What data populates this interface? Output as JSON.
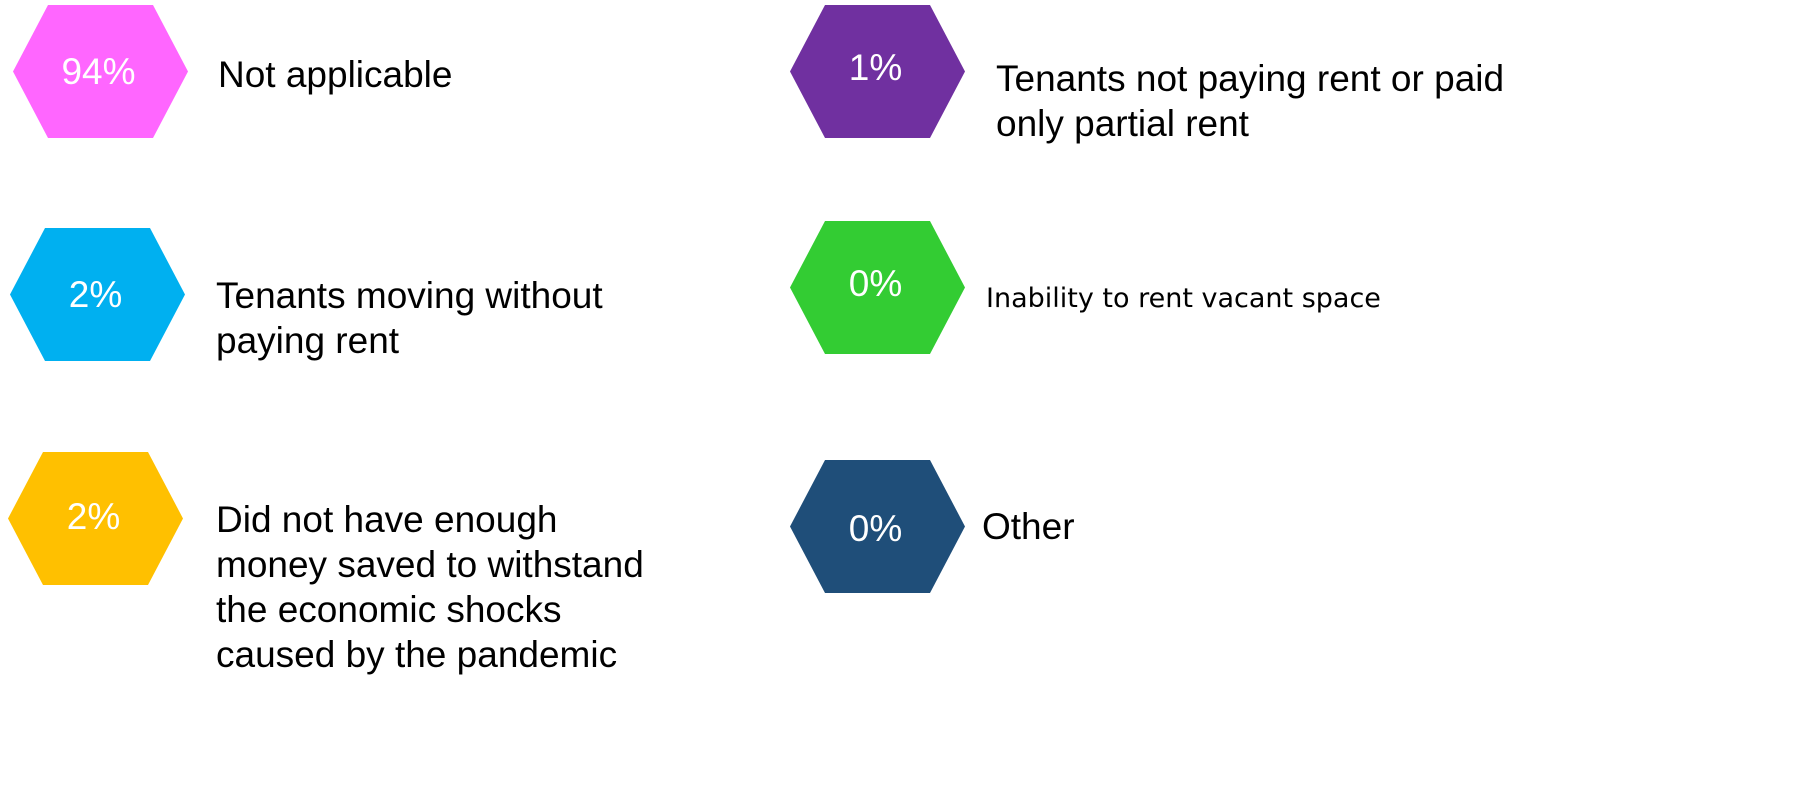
{
  "items": [
    {
      "value": "94%",
      "lines": [
        "Not applicable"
      ],
      "color": "#ff66ff"
    },
    {
      "value": "2%",
      "lines": [
        "Tenants moving without",
        "paying rent"
      ],
      "color": "#00b0f0"
    },
    {
      "value": "2%",
      "lines": [
        "Did not have enough",
        "money saved to withstand",
        "the economic shocks",
        "caused by the pandemic"
      ],
      "color": "#ffc000"
    },
    {
      "value": "1%",
      "lines": [
        "Tenants not paying rent or paid",
        "only partial rent"
      ],
      "color": "#7030a0"
    },
    {
      "value": "0%",
      "lines": [
        "Inability to rent vacant space"
      ],
      "color": "#33cc33"
    },
    {
      "value": "0%",
      "lines": [
        "Other"
      ],
      "color": "#1f4e79"
    }
  ]
}
